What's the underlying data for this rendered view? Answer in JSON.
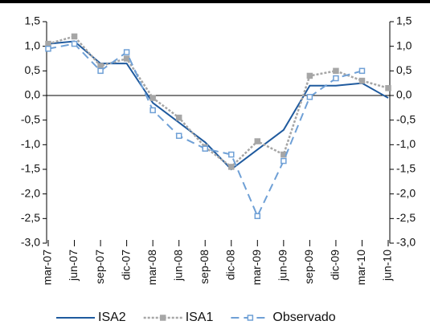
{
  "chart_data": {
    "type": "line",
    "categories": [
      "mar-07",
      "jun-07",
      "sep-07",
      "dic-07",
      "mar-08",
      "jun-08",
      "sep-08",
      "dic-08",
      "mar-09",
      "jun-09",
      "sep-09",
      "dic-09",
      "mar-10",
      "jun-10"
    ],
    "series": [
      {
        "name": "ISA2",
        "color": "#1f5a9e",
        "values": [
          1.05,
          1.1,
          0.65,
          0.65,
          -0.15,
          -0.55,
          -0.95,
          -1.5,
          -1.1,
          -0.7,
          0.2,
          0.2,
          0.25,
          -0.05
        ]
      },
      {
        "name": "ISA1",
        "color": "#a6a6a6",
        "values": [
          1.05,
          1.2,
          0.6,
          0.75,
          -0.05,
          -0.45,
          -1.05,
          -1.45,
          -0.93,
          -1.2,
          0.4,
          0.5,
          0.3,
          0.15
        ]
      },
      {
        "name": "Observado",
        "color": "#6fa0d6",
        "values": [
          0.95,
          1.05,
          0.5,
          0.88,
          -0.3,
          -0.82,
          -1.08,
          -1.2,
          -2.45,
          -1.33,
          -0.03,
          0.35,
          0.5,
          null
        ]
      }
    ],
    "ylim": [
      -3,
      1.5
    ],
    "yticks": [
      {
        "value": 1.5,
        "label": "1,5"
      },
      {
        "value": 1,
        "label": "1,0"
      },
      {
        "value": 0.5,
        "label": "0,5"
      },
      {
        "value": 0,
        "label": "0,0"
      },
      {
        "value": -0.5,
        "label": "-0,5"
      },
      {
        "value": -1,
        "label": "-1,0"
      },
      {
        "value": -1.5,
        "label": "-1,5"
      },
      {
        "value": -2,
        "label": "-2,0"
      },
      {
        "value": -2.5,
        "label": "-2,5"
      },
      {
        "value": -3,
        "label": "-3,0"
      }
    ],
    "grid": false
  }
}
